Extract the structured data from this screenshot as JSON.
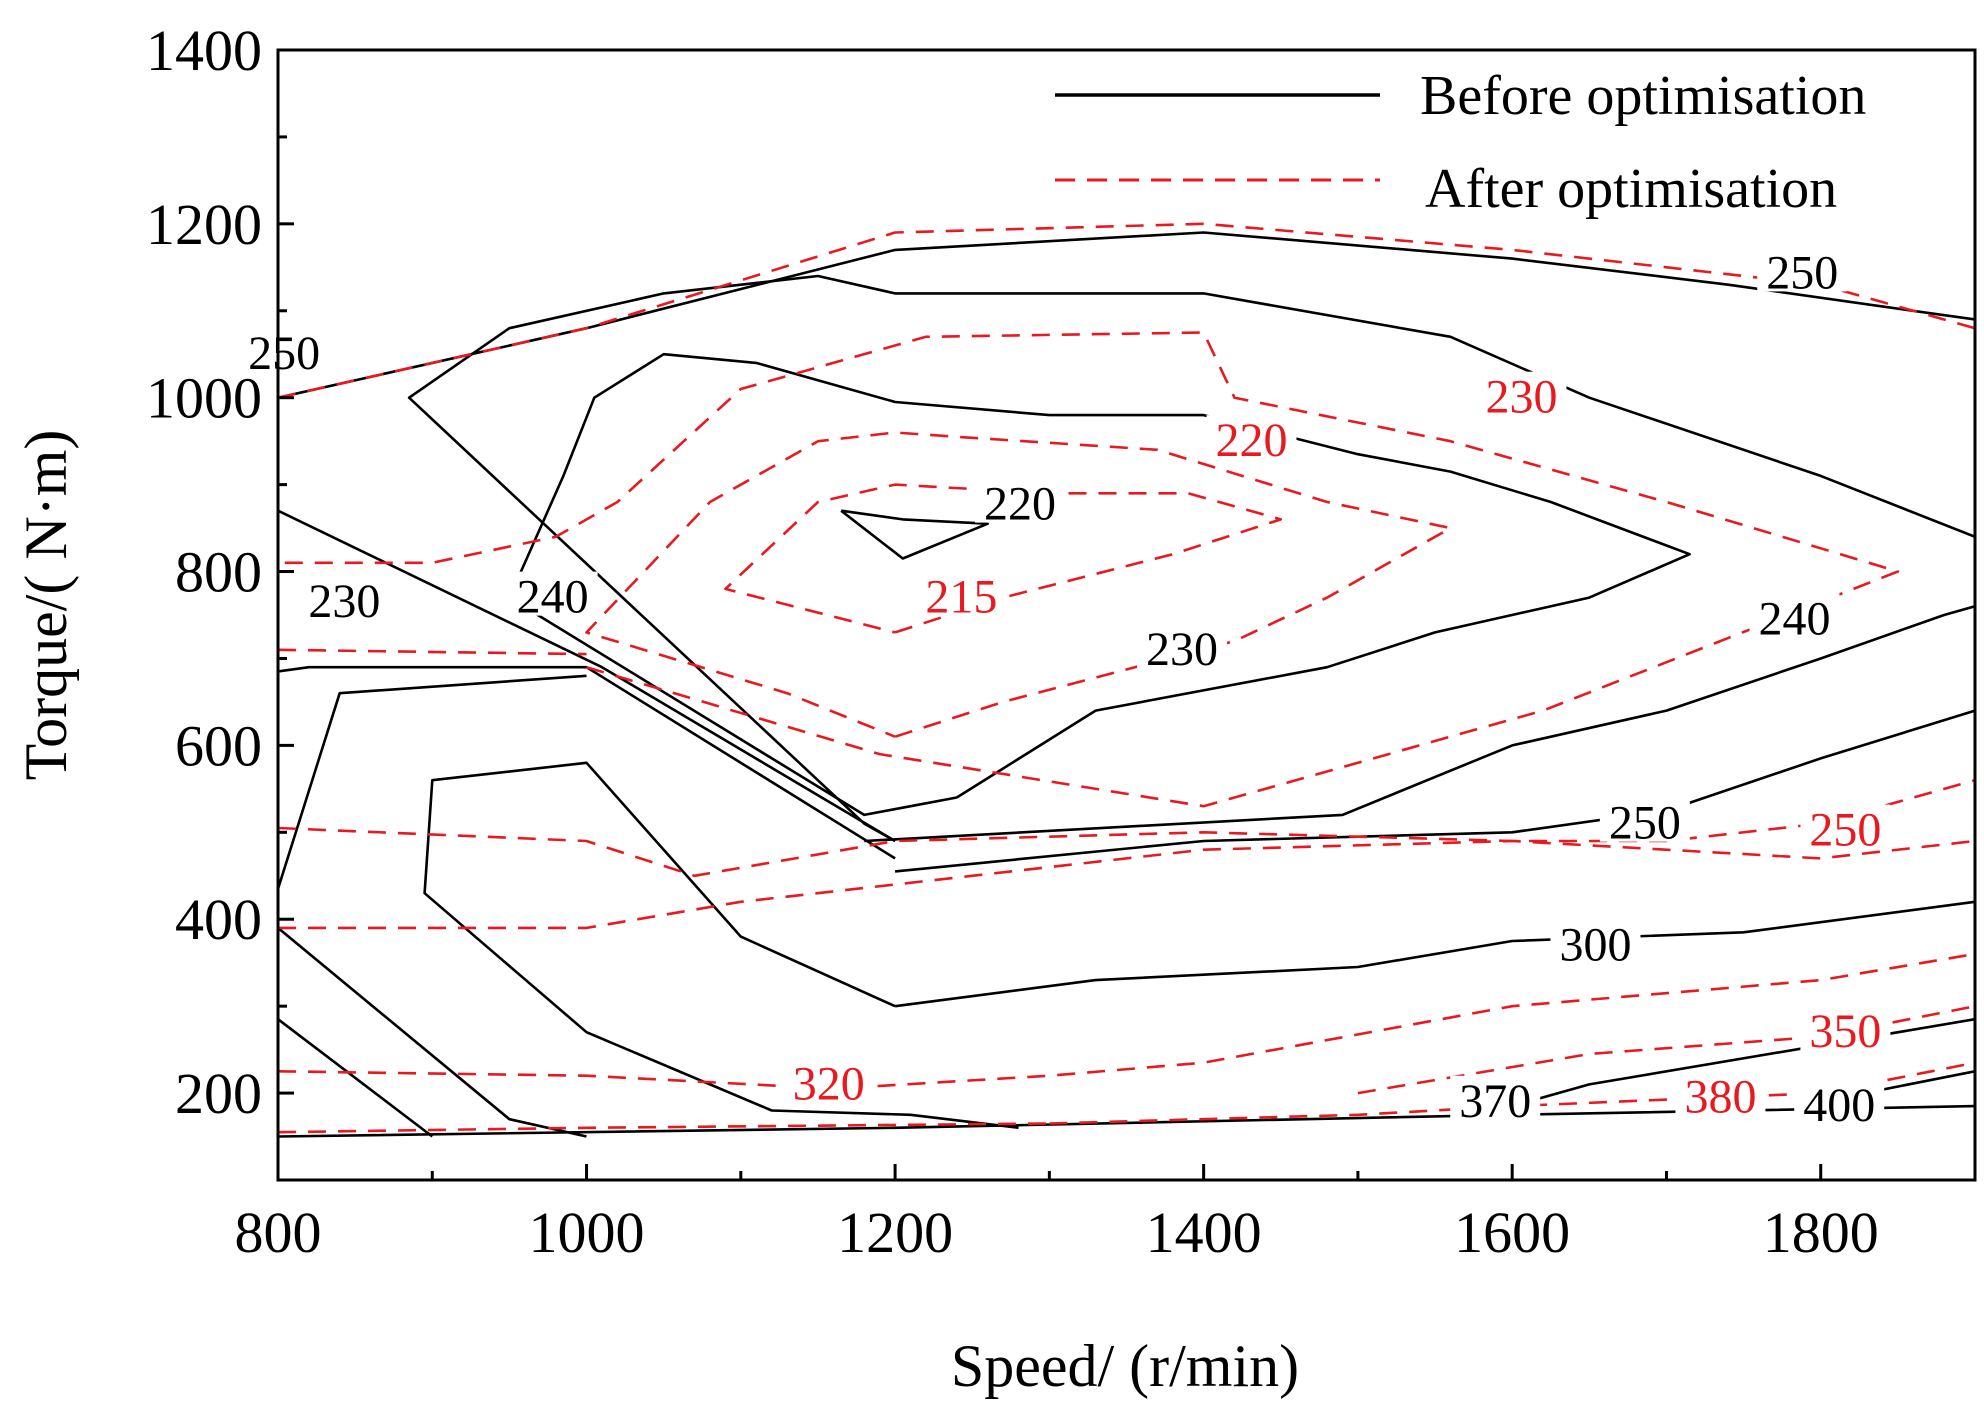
{
  "chart_data": {
    "type": "contour",
    "title": "",
    "xlabel": "Speed/ (r/min)",
    "ylabel": "Torque/( N·m)",
    "xlim": [
      800,
      1900
    ],
    "ylim": [
      100,
      1400
    ],
    "xticks": [
      800,
      1000,
      1200,
      1400,
      1600,
      1800
    ],
    "yticks": [
      200,
      400,
      600,
      800,
      1000,
      1200,
      1400
    ],
    "legend": {
      "position": "top-right",
      "entries": [
        "Before optimisation",
        "After optimisation"
      ]
    },
    "colors": {
      "before": "#000000",
      "after": "#e8191f"
    },
    "series": [
      {
        "name": "Before optimisation",
        "style": "solid",
        "contours": [
          {
            "level": "220",
            "points": [
              [
                1165,
                870
              ],
              [
                1205,
                815
              ],
              [
                1260,
                855
              ],
              [
                1205,
                860
              ],
              [
                1165,
                870
              ]
            ]
          },
          {
            "level": "230",
            "points": [
              [
                1240,
                540
              ],
              [
                1330,
                640
              ],
              [
                1480,
                690
              ],
              [
                1550,
                730
              ],
              [
                1650,
                770
              ],
              [
                1715,
                820
              ],
              [
                1625,
                880
              ],
              [
                1560,
                915
              ],
              [
                1500,
                935
              ],
              [
                1400,
                980
              ],
              [
                1300,
                980
              ],
              [
                1200,
                995
              ],
              [
                1110,
                1040
              ],
              [
                1050,
                1050
              ],
              [
                1005,
                1000
              ],
              [
                985,
                910
              ],
              [
                950,
                770
              ],
              [
                1180,
                520
              ],
              [
                1240,
                540
              ]
            ]
          },
          {
            "level": "240",
            "points": [
              [
                1180,
                490
              ],
              [
                1490,
                520
              ],
              [
                1600,
                600
              ],
              [
                1700,
                640
              ],
              [
                1800,
                700
              ],
              [
                1880,
                750
              ],
              [
                1900,
                760
              ]
            ]
          },
          {
            "level": "240",
            "points": [
              [
                1900,
                840
              ],
              [
                1800,
                910
              ],
              [
                1650,
                1000
              ],
              [
                1560,
                1070
              ],
              [
                1400,
                1120
              ],
              [
                1200,
                1120
              ],
              [
                1150,
                1140
              ],
              [
                1050,
                1120
              ],
              [
                950,
                1080
              ],
              [
                885,
                1000
              ],
              [
                1180,
                510
              ],
              [
                1200,
                490
              ]
            ]
          },
          {
            "level": "240",
            "points": [
              [
                800,
                870
              ],
              [
                1010,
                690
              ],
              [
                1200,
                490
              ]
            ]
          },
          {
            "level": "240",
            "points": [
              [
                800,
                685
              ],
              [
                820,
                690
              ],
              [
                1000,
                690
              ],
              [
                1200,
                470
              ]
            ]
          },
          {
            "level": "250",
            "points": [
              [
                800,
                1000
              ],
              [
                1000,
                1080
              ],
              [
                1200,
                1170
              ],
              [
                1400,
                1190
              ],
              [
                1600,
                1160
              ],
              [
                1740,
                1130
              ],
              [
                1900,
                1090
              ]
            ]
          },
          {
            "level": "250",
            "points": [
              [
                1200,
                455
              ],
              [
                1400,
                490
              ],
              [
                1600,
                500
              ],
              [
                1700,
                525
              ],
              [
                1800,
                585
              ],
              [
                1900,
                640
              ]
            ]
          },
          {
            "level": "250",
            "points": [
              [
                800,
                435
              ],
              [
                840,
                660
              ],
              [
                1000,
                680
              ]
            ]
          },
          {
            "level": "300",
            "points": [
              [
                1200,
                300
              ],
              [
                1330,
                330
              ],
              [
                1500,
                345
              ],
              [
                1600,
                375
              ],
              [
                1750,
                385
              ],
              [
                1900,
                420
              ]
            ]
          },
          {
            "level": "300",
            "points": [
              [
                1200,
                300
              ],
              [
                1100,
                380
              ],
              [
                1000,
                580
              ],
              [
                900,
                560
              ],
              [
                895,
                430
              ],
              [
                1000,
                270
              ],
              [
                1120,
                180
              ],
              [
                1210,
                175
              ],
              [
                1280,
                160
              ]
            ]
          },
          {
            "level": "370",
            "points": [
              [
                800,
                390
              ],
              [
                950,
                170
              ],
              [
                1000,
                150
              ]
            ]
          },
          {
            "level": "370",
            "points": [
              [
                1580,
                175
              ],
              [
                1650,
                210
              ],
              [
                1800,
                255
              ],
              [
                1900,
                285
              ]
            ]
          },
          {
            "level": "400",
            "points": [
              [
                800,
                285
              ],
              [
                900,
                150
              ]
            ]
          },
          {
            "level": "400",
            "points": [
              [
                1800,
                190
              ],
              [
                1900,
                225
              ]
            ]
          },
          {
            "level": "",
            "points": [
              [
                800,
                150
              ],
              [
                1200,
                160
              ],
              [
                1600,
                175
              ],
              [
                1900,
                185
              ]
            ]
          }
        ],
        "contour_labels": [
          "220",
          "230",
          "240",
          "240",
          "230",
          "250",
          "250",
          "300",
          "370",
          "400",
          "250"
        ]
      },
      {
        "name": "After optimisation",
        "style": "dashed",
        "contours": [
          {
            "level": "215",
            "points": [
              [
                1200,
                730
              ],
              [
                1270,
                770
              ],
              [
                1380,
                820
              ],
              [
                1450,
                860
              ],
              [
                1390,
                890
              ],
              [
                1300,
                890
              ],
              [
                1200,
                900
              ],
              [
                1150,
                880
              ],
              [
                1090,
                780
              ],
              [
                1200,
                730
              ]
            ]
          },
          {
            "level": "220",
            "points": [
              [
                1200,
                610
              ],
              [
                1270,
                650
              ],
              [
                1420,
                720
              ],
              [
                1480,
                770
              ],
              [
                1560,
                850
              ],
              [
                1480,
                880
              ],
              [
                1370,
                940
              ],
              [
                1240,
                955
              ],
              [
                1200,
                960
              ],
              [
                1150,
                950
              ],
              [
                1080,
                880
              ],
              [
                1000,
                730
              ],
              [
                1130,
                660
              ],
              [
                1200,
                610
              ]
            ]
          },
          {
            "level": "230",
            "points": [
              [
                1000,
                690
              ],
              [
                1190,
                590
              ],
              [
                1400,
                530
              ],
              [
                1620,
                640
              ],
              [
                1850,
                800
              ],
              [
                1700,
                880
              ],
              [
                1560,
                950
              ],
              [
                1420,
                1000
              ],
              [
                1400,
                1075
              ],
              [
                1220,
                1070
              ],
              [
                1100,
                1010
              ],
              [
                1020,
                880
              ],
              [
                980,
                840
              ],
              [
                900,
                810
              ],
              [
                800,
                810
              ]
            ]
          },
          {
            "level": "240",
            "points": [
              [
                800,
                1000
              ],
              [
                1000,
                1080
              ],
              [
                1200,
                1190
              ],
              [
                1400,
                1200
              ],
              [
                1600,
                1170
              ],
              [
                1800,
                1130
              ],
              [
                1900,
                1080
              ]
            ]
          },
          {
            "level": "240",
            "points": [
              [
                800,
                710
              ],
              [
                1000,
                705
              ]
            ]
          },
          {
            "level": "250",
            "points": [
              [
                800,
                505
              ],
              [
                1000,
                490
              ],
              [
                1070,
                450
              ],
              [
                1200,
                490
              ],
              [
                1400,
                500
              ],
              [
                1600,
                490
              ],
              [
                1700,
                490
              ],
              [
                1800,
                510
              ],
              [
                1900,
                560
              ]
            ]
          },
          {
            "level": "300",
            "points": [
              [
                800,
                390
              ],
              [
                1000,
                390
              ],
              [
                1100,
                420
              ],
              [
                1200,
                440
              ],
              [
                1400,
                480
              ],
              [
                1600,
                490
              ],
              [
                1800,
                470
              ],
              [
                1900,
                490
              ]
            ]
          },
          {
            "level": "320",
            "points": [
              [
                800,
                225
              ],
              [
                1000,
                220
              ],
              [
                1160,
                205
              ],
              [
                1300,
                220
              ],
              [
                1400,
                235
              ],
              [
                1600,
                300
              ],
              [
                1800,
                330
              ],
              [
                1900,
                360
              ]
            ]
          },
          {
            "level": "350",
            "points": [
              [
                1500,
                200
              ],
              [
                1650,
                245
              ],
              [
                1800,
                265
              ],
              [
                1900,
                300
              ]
            ]
          },
          {
            "level": "380",
            "points": [
              [
                1300,
                165
              ],
              [
                1500,
                175
              ],
              [
                1600,
                185
              ],
              [
                1800,
                200
              ],
              [
                1900,
                235
              ]
            ]
          },
          {
            "level": "",
            "points": [
              [
                800,
                155
              ],
              [
                1000,
                160
              ],
              [
                1300,
                165
              ]
            ]
          }
        ],
        "contour_labels": [
          "215",
          "220",
          "230",
          "250",
          "320",
          "350",
          "380"
        ]
      }
    ],
    "labels": [
      {
        "series": "before",
        "text": "250",
        "x": 804,
        "y": 1050
      },
      {
        "series": "before",
        "text": "230",
        "x": 843,
        "y": 765
      },
      {
        "series": "before",
        "text": "240",
        "x": 978,
        "y": 770
      },
      {
        "series": "before",
        "text": "220",
        "x": 1281,
        "y": 877
      },
      {
        "series": "before",
        "text": "230",
        "x": 1386,
        "y": 710
      },
      {
        "series": "before",
        "text": "250",
        "x": 1788,
        "y": 1143
      },
      {
        "series": "before",
        "text": "240",
        "x": 1783,
        "y": 745
      },
      {
        "series": "before",
        "text": "250",
        "x": 1686,
        "y": 510
      },
      {
        "series": "before",
        "text": "300",
        "x": 1654,
        "y": 370
      },
      {
        "series": "before",
        "text": "370",
        "x": 1589,
        "y": 190
      },
      {
        "series": "before",
        "text": "400",
        "x": 1812,
        "y": 185
      },
      {
        "series": "after",
        "text": "230",
        "x": 1606,
        "y": 1000
      },
      {
        "series": "after",
        "text": "220",
        "x": 1431,
        "y": 950
      },
      {
        "series": "after",
        "text": "215",
        "x": 1243,
        "y": 770
      },
      {
        "series": "after",
        "text": "250",
        "x": 1816,
        "y": 502
      },
      {
        "series": "after",
        "text": "320",
        "x": 1157,
        "y": 210
      },
      {
        "series": "after",
        "text": "350",
        "x": 1816,
        "y": 270
      },
      {
        "series": "after",
        "text": "380",
        "x": 1735,
        "y": 195
      }
    ]
  }
}
